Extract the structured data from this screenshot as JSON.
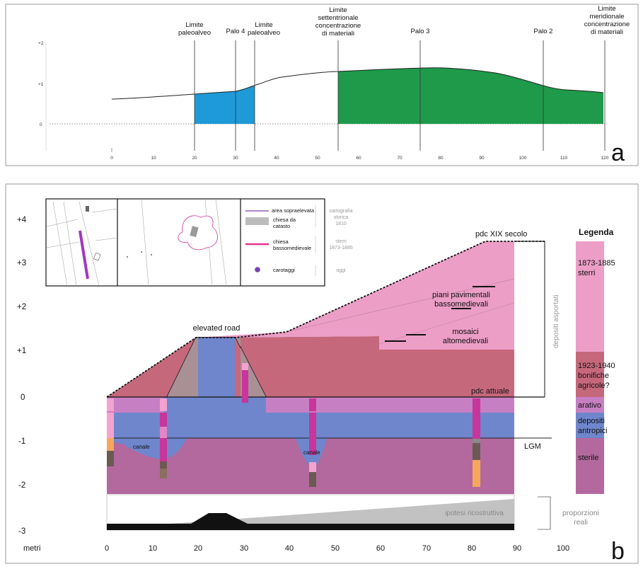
{
  "panel_a": {
    "letter": "a",
    "labels": {
      "limite_paleoalveo_1": [
        "Limite",
        "paleoalveo"
      ],
      "palo_4": "Palo 4",
      "limite_paleoalveo_2": [
        "Limite",
        "paleoalveo"
      ],
      "limite_settentrionale": [
        "Limite",
        "settentrionale",
        "concentrazione",
        "di materiali"
      ],
      "palo_3": "Palo 3",
      "palo_2": "Palo 2",
      "limite_meridionale": [
        "Limite",
        "meridionale",
        "concentrazione",
        "di materiali"
      ]
    },
    "y_ticks": [
      "+2",
      "+1",
      "0"
    ],
    "x_ticks": [
      "0",
      "10",
      "20",
      "30",
      "40",
      "50",
      "60",
      "70",
      "80",
      "90",
      "100",
      "110",
      "120"
    ],
    "colors": {
      "blue_fill": "#1e9ad8",
      "green_fill": "#1e9a4a"
    }
  },
  "panel_b": {
    "letter": "b",
    "y_ticks": [
      "+4",
      "+3",
      "+2",
      "+1",
      "0",
      "-1",
      "-2",
      "-3"
    ],
    "x_label": "metri",
    "x_ticks": [
      "0",
      "10",
      "20",
      "30",
      "40",
      "50",
      "60",
      "70",
      "80",
      "90",
      "100"
    ],
    "annotations": {
      "pdc_xix": "pdc XIX secolo",
      "piani_1": "piani pavimentali",
      "piani_2": "bassomedievali",
      "elevated_road": "elevated road",
      "mosaici_1": "mosaici",
      "mosaici_2": "altomedievali",
      "pdc_attuale": "pdc attuale",
      "depositi_asportati": "depositi asportati",
      "canale_1": "canale",
      "canale_2": "canale",
      "lgm": "LGM",
      "ipotesi": "ipotesi ricostruttiva",
      "proporzioni_1": "proporzioni",
      "proporzioni_2": "reali"
    },
    "inset_legend": {
      "area_sopraelevata": "area sopraelevata",
      "chiesa_catasto": [
        "chiesa da",
        "catasto"
      ],
      "cartografia": [
        "cartografia",
        "storica",
        "1810"
      ],
      "chiesa_basso": [
        "chiesa",
        "bassomedievale"
      ],
      "sterri": [
        "sterri",
        "1873-1885"
      ],
      "carotaggi": "carotaggi",
      "oggi": "oggi"
    },
    "legend": {
      "title": "Legenda",
      "items": [
        {
          "label": [
            "1873-1885",
            "sterri"
          ],
          "color": "#ec9ec7"
        },
        {
          "label": [
            "1923-1940",
            "bonifiche",
            "agricole?"
          ],
          "color": "#c6687c"
        },
        {
          "label": [
            "arativo"
          ],
          "color": "#c77fc4"
        },
        {
          "label": [
            "depositi",
            "antropici"
          ],
          "color": "#6f86cc"
        },
        {
          "label": [
            "sterile"
          ],
          "color": "#b3699d"
        }
      ]
    },
    "colors": {
      "sterri": "#ec9ec7",
      "bonifiche": "#c6687c",
      "arativo": "#c77fc4",
      "depositi": "#6f86cc",
      "sterile": "#b3699d",
      "core_magenta": "#c8359b",
      "core_orange": "#f5a85c",
      "core_brown": "#6b5a52",
      "core_light": "#f2a3cf",
      "area_line": "#7a3fb5"
    }
  }
}
